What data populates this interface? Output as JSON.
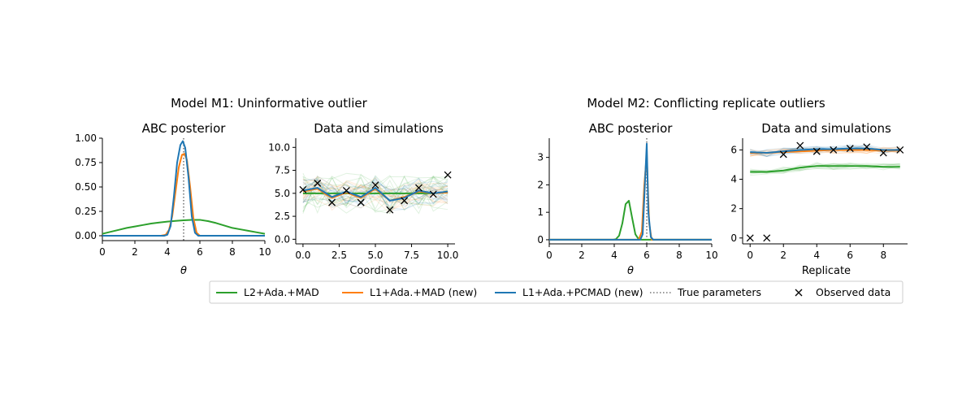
{
  "figure": {
    "group_titles": [
      "Model M1: Uninformative outlier",
      "Model M2: Conflicting replicate outliers"
    ]
  },
  "legend": {
    "entries": [
      {
        "label": "L2+Ada.+MAD",
        "color": "#2ca02c",
        "style": "line"
      },
      {
        "label": "L1+Ada.+MAD (new)",
        "color": "#ff7f0e",
        "style": "line"
      },
      {
        "label": "L1+Ada.+PCMAD (new)",
        "color": "#1f77b4",
        "style": "line"
      },
      {
        "label": "True parameters",
        "color": "#777777",
        "style": "dotted"
      },
      {
        "label": "Observed data",
        "color": "#000000",
        "style": "x"
      }
    ]
  },
  "chart_data": [
    {
      "type": "line",
      "title": "ABC posterior",
      "xlabel": "θ",
      "ylabel": "",
      "xlim": [
        0,
        10
      ],
      "ylim": [
        -0.05,
        1.0
      ],
      "xticks": [
        0,
        2,
        4,
        6,
        8,
        10
      ],
      "xtick_labels": [
        "0",
        "2",
        "4",
        "6",
        "8",
        "10"
      ],
      "yticks": [
        0.0,
        0.25,
        0.5,
        0.75,
        1.0
      ],
      "ytick_labels": [
        "0.00",
        "0.25",
        "0.50",
        "0.75",
        "1.00"
      ],
      "true_parameter": 5,
      "series": [
        {
          "name": "L2+Ada.+MAD",
          "color": "#2ca02c",
          "x": [
            0,
            0.5,
            1,
            1.5,
            2,
            2.5,
            3,
            3.5,
            4,
            4.5,
            5,
            5.5,
            6,
            6.5,
            7,
            7.5,
            8,
            8.5,
            9,
            9.5,
            10
          ],
          "y": [
            0.02,
            0.04,
            0.06,
            0.08,
            0.095,
            0.11,
            0.125,
            0.135,
            0.145,
            0.152,
            0.158,
            0.162,
            0.163,
            0.15,
            0.13,
            0.105,
            0.08,
            0.065,
            0.05,
            0.035,
            0.02
          ]
        },
        {
          "name": "L1+Ada.+MAD (new)",
          "color": "#ff7f0e",
          "x": [
            0,
            3.6,
            3.9,
            4.1,
            4.3,
            4.5,
            4.7,
            4.9,
            5.05,
            5.2,
            5.4,
            5.6,
            5.8,
            6.0,
            6.2,
            10
          ],
          "y": [
            0,
            0,
            0.01,
            0.06,
            0.2,
            0.45,
            0.7,
            0.83,
            0.84,
            0.78,
            0.5,
            0.18,
            0.03,
            0.0,
            0,
            0
          ]
        },
        {
          "name": "L1+Ada.+PCMAD (new)",
          "color": "#1f77b4",
          "x": [
            0,
            3.8,
            4.0,
            4.2,
            4.4,
            4.6,
            4.8,
            4.95,
            5.1,
            5.3,
            5.5,
            5.7,
            5.9,
            6.1,
            10
          ],
          "y": [
            0,
            0,
            0.01,
            0.1,
            0.4,
            0.75,
            0.93,
            0.97,
            0.9,
            0.6,
            0.2,
            0.03,
            0.0,
            0,
            0
          ]
        }
      ]
    },
    {
      "type": "line",
      "title": "Data and simulations",
      "xlabel": "Coordinate",
      "ylabel": "",
      "xlim": [
        -0.5,
        10.5
      ],
      "ylim": [
        -0.5,
        11
      ],
      "xticks": [
        0,
        2.5,
        5,
        7.5,
        10
      ],
      "xtick_labels": [
        "0.0",
        "2.5",
        "5.0",
        "7.5",
        "10.0"
      ],
      "yticks": [
        0,
        2.5,
        5,
        7.5,
        10
      ],
      "ytick_labels": [
        "0.0",
        "2.5",
        "5.0",
        "7.5",
        "10.0"
      ],
      "x": [
        0,
        1,
        2,
        3,
        4,
        5,
        6,
        7,
        8,
        9,
        10
      ],
      "observed": [
        5.4,
        6.1,
        4.0,
        5.3,
        4.0,
        5.9,
        3.2,
        4.2,
        5.6,
        4.9,
        7.0
      ],
      "series": [
        {
          "name": "L2+Ada.+MAD",
          "color": "#2ca02c",
          "values": [
            5.0,
            5.0,
            5.0,
            5.0,
            5.0,
            5.0,
            5.0,
            5.0,
            5.0,
            5.0,
            5.1
          ]
        },
        {
          "name": "L1+Ada.+MAD (new)",
          "color": "#ff7f0e",
          "values": [
            5.2,
            5.5,
            4.5,
            5.1,
            4.5,
            5.5,
            4.2,
            4.6,
            5.2,
            5.0,
            5.1
          ]
        },
        {
          "name": "L1+Ada.+PCMAD (new)",
          "color": "#1f77b4",
          "values": [
            5.3,
            5.6,
            4.6,
            5.2,
            4.6,
            5.6,
            4.2,
            4.5,
            5.3,
            5.0,
            5.2
          ]
        }
      ]
    },
    {
      "type": "line",
      "title": "ABC posterior",
      "xlabel": "θ",
      "ylabel": "",
      "xlim": [
        0,
        10
      ],
      "ylim": [
        -0.15,
        3.7
      ],
      "xticks": [
        0,
        2,
        4,
        6,
        8,
        10
      ],
      "xtick_labels": [
        "0",
        "2",
        "4",
        "6",
        "8",
        "10"
      ],
      "yticks": [
        0,
        1,
        2,
        3
      ],
      "ytick_labels": [
        "0",
        "1",
        "2",
        "3"
      ],
      "true_parameter": 6,
      "series": [
        {
          "name": "L2+Ada.+MAD",
          "color": "#2ca02c",
          "x": [
            0,
            3.9,
            4.1,
            4.3,
            4.5,
            4.7,
            4.9,
            5.1,
            5.3,
            5.5,
            5.7,
            10
          ],
          "y": [
            0,
            0,
            0.02,
            0.15,
            0.6,
            1.3,
            1.42,
            0.8,
            0.2,
            0.02,
            0,
            0
          ]
        },
        {
          "name": "L1+Ada.+MAD (new)",
          "color": "#ff7f0e",
          "x": [
            0,
            5.5,
            5.7,
            5.85,
            6.0,
            6.15,
            6.3,
            10
          ],
          "y": [
            0,
            0,
            0.3,
            2.0,
            3.1,
            0.6,
            0,
            0
          ]
        },
        {
          "name": "L1+Ada.+PCMAD (new)",
          "color": "#1f77b4",
          "x": [
            0,
            5.6,
            5.75,
            5.9,
            6.0,
            6.1,
            6.25,
            6.4,
            10
          ],
          "y": [
            0,
            0,
            0.2,
            2.2,
            3.5,
            1.0,
            0.1,
            0,
            0
          ]
        }
      ]
    },
    {
      "type": "line",
      "title": "Data and simulations",
      "xlabel": "Replicate",
      "ylabel": "",
      "xlim": [
        -0.45,
        9.45
      ],
      "ylim": [
        -0.4,
        6.8
      ],
      "xticks": [
        0,
        2,
        4,
        6,
        8
      ],
      "xtick_labels": [
        "0",
        "2",
        "4",
        "6",
        "8"
      ],
      "yticks": [
        0,
        2,
        4,
        6
      ],
      "ytick_labels": [
        "0",
        "2",
        "4",
        "6"
      ],
      "x": [
        0,
        1,
        2,
        3,
        4,
        5,
        6,
        7,
        8,
        9
      ],
      "observed": [
        0.0,
        0.0,
        5.7,
        6.3,
        5.9,
        6.0,
        6.1,
        6.2,
        5.8,
        6.0
      ],
      "series": [
        {
          "name": "L2+Ada.+MAD",
          "color": "#2ca02c",
          "values": [
            4.5,
            4.5,
            4.6,
            4.8,
            4.9,
            4.9,
            4.9,
            4.9,
            4.85,
            4.85
          ]
        },
        {
          "name": "L1+Ada.+MAD (new)",
          "color": "#ff7f0e",
          "values": [
            5.8,
            5.8,
            5.85,
            5.9,
            5.95,
            6.0,
            6.0,
            6.0,
            5.95,
            5.95
          ]
        },
        {
          "name": "L1+Ada.+PCMAD (new)",
          "color": "#1f77b4",
          "values": [
            5.85,
            5.8,
            5.9,
            6.0,
            6.05,
            6.05,
            6.1,
            6.1,
            6.0,
            6.0
          ]
        }
      ]
    }
  ]
}
